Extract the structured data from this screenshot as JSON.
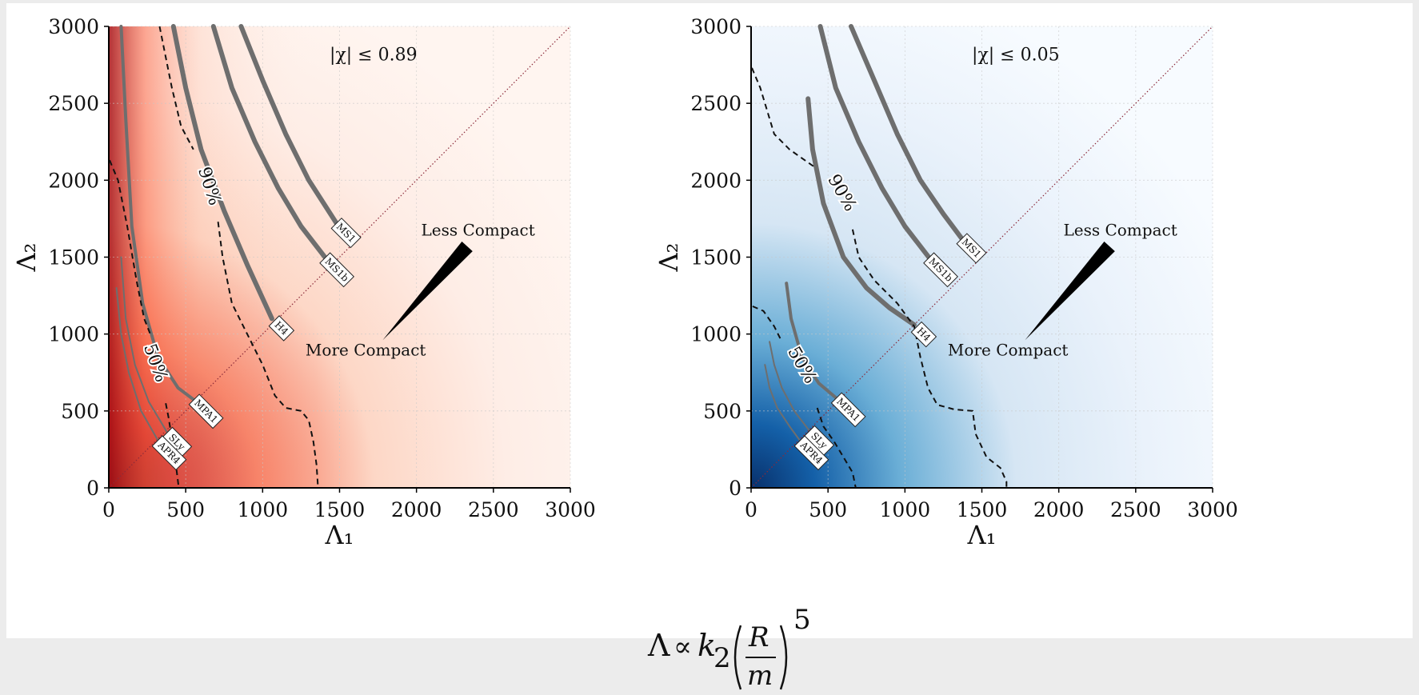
{
  "chart_data": [
    {
      "type": "heatmap",
      "panel": "left",
      "colormap": "reds",
      "colors": {
        "high": "#67000d",
        "mid": "#ef3b2c",
        "low": "#fff5f0"
      },
      "xlabel": "Λ₁",
      "ylabel": "Λ₂",
      "xlim": [
        0,
        3000
      ],
      "ylim": [
        0,
        3000
      ],
      "x_ticks": [
        "0",
        "500",
        "1000",
        "1500",
        "2000",
        "2500",
        "3000"
      ],
      "y_ticks": [
        "0",
        "500",
        "1000",
        "1500",
        "2000",
        "2500",
        "3000"
      ],
      "grid": true,
      "annotation": "|χ| ≤ 0.89",
      "contour_labels": [
        "50%",
        "90%"
      ],
      "contours": [
        {
          "level": "50%",
          "points": [
            [
              5,
              2130
            ],
            [
              60,
              2000
            ],
            [
              120,
              1700
            ],
            [
              180,
              1350
            ],
            [
              230,
              1100
            ],
            [
              270,
              1000
            ]
          ]
        },
        {
          "level": "50%",
          "points": [
            [
              370,
              550
            ],
            [
              390,
              450
            ],
            [
              420,
              250
            ],
            [
              440,
              120
            ],
            [
              455,
              0
            ]
          ]
        },
        {
          "level": "90%",
          "points": [
            [
              330,
              3000
            ],
            [
              370,
              2800
            ],
            [
              410,
              2600
            ],
            [
              470,
              2350
            ],
            [
              550,
              2200
            ]
          ]
        },
        {
          "level": "90%",
          "points": [
            [
              710,
              1730
            ],
            [
              740,
              1500
            ],
            [
              800,
              1200
            ],
            [
              900,
              1000
            ],
            [
              1000,
              800
            ],
            [
              1080,
              600
            ],
            [
              1150,
              520
            ],
            [
              1250,
              500
            ],
            [
              1300,
              440
            ],
            [
              1330,
              300
            ],
            [
              1350,
              150
            ],
            [
              1360,
              0
            ]
          ]
        },
        {
          "level": "90%",
          "points": [
            [
              0,
              0
            ],
            [
              1360,
              0
            ]
          ]
        }
      ],
      "eos": [
        {
          "name": "MS1",
          "points": [
            [
              860,
              3000
            ],
            [
              1000,
              2650
            ],
            [
              1150,
              2300
            ],
            [
              1300,
              2000
            ],
            [
              1480,
              1720
            ]
          ]
        },
        {
          "name": "MS1b",
          "points": [
            [
              680,
              3000
            ],
            [
              800,
              2600
            ],
            [
              950,
              2250
            ],
            [
              1100,
              1950
            ],
            [
              1250,
              1700
            ],
            [
              1420,
              1480
            ]
          ]
        },
        {
          "name": "H4",
          "points": [
            [
              420,
              3000
            ],
            [
              500,
              2600
            ],
            [
              600,
              2200
            ],
            [
              750,
              1800
            ],
            [
              900,
              1450
            ],
            [
              1060,
              1100
            ]
          ]
        },
        {
          "name": "MPA1",
          "points": [
            [
              80,
              3000
            ],
            [
              110,
              2400
            ],
            [
              150,
              1700
            ],
            [
              220,
              1200
            ],
            [
              320,
              850
            ],
            [
              450,
              650
            ],
            [
              570,
              560
            ]
          ]
        },
        {
          "name": "SLy",
          "points": [
            [
              80,
              1500
            ],
            [
              110,
              1100
            ],
            [
              170,
              800
            ],
            [
              260,
              560
            ],
            [
              380,
              360
            ]
          ]
        },
        {
          "name": "APR4",
          "points": [
            [
              50,
              1300
            ],
            [
              80,
              1000
            ],
            [
              130,
              750
            ],
            [
              210,
              500
            ],
            [
              330,
              290
            ]
          ]
        }
      ],
      "arrow": {
        "top_label": "Less Compact",
        "bottom_label": "More Compact"
      }
    },
    {
      "type": "heatmap",
      "panel": "right",
      "colormap": "blues",
      "colors": {
        "high": "#08306b",
        "mid": "#4292c6",
        "low": "#f7fbff"
      },
      "xlabel": "Λ₁",
      "ylabel": "Λ₂",
      "xlim": [
        0,
        3000
      ],
      "ylim": [
        0,
        3000
      ],
      "x_ticks": [
        "0",
        "500",
        "1000",
        "1500",
        "2000",
        "2500",
        "3000"
      ],
      "y_ticks": [
        "0",
        "500",
        "1000",
        "1500",
        "2000",
        "2500",
        "3000"
      ],
      "grid": true,
      "annotation": "|χ| ≤ 0.05",
      "contour_labels": [
        "50%",
        "90%"
      ],
      "contours": [
        {
          "level": "90%",
          "points": [
            [
              5,
              2730
            ],
            [
              60,
              2600
            ],
            [
              150,
              2300
            ],
            [
              250,
              2200
            ],
            [
              420,
              2080
            ]
          ]
        },
        {
          "level": "90%",
          "points": [
            [
              660,
              1680
            ],
            [
              700,
              1500
            ],
            [
              800,
              1350
            ],
            [
              950,
              1200
            ],
            [
              1060,
              1050
            ],
            [
              1100,
              850
            ],
            [
              1150,
              650
            ],
            [
              1210,
              540
            ],
            [
              1320,
              510
            ],
            [
              1440,
              500
            ],
            [
              1460,
              350
            ],
            [
              1530,
              200
            ],
            [
              1620,
              130
            ],
            [
              1660,
              40
            ],
            [
              1660,
              0
            ]
          ]
        },
        {
          "level": "90%",
          "points": [
            [
              0,
              0
            ],
            [
              1660,
              0
            ]
          ]
        },
        {
          "level": "50%",
          "points": [
            [
              10,
              1180
            ],
            [
              80,
              1150
            ],
            [
              150,
              1050
            ],
            [
              200,
              950
            ]
          ]
        },
        {
          "level": "50%",
          "points": [
            [
              430,
              520
            ],
            [
              470,
              400
            ],
            [
              540,
              300
            ],
            [
              600,
              200
            ],
            [
              660,
              100
            ],
            [
              680,
              0
            ]
          ]
        },
        {
          "level": "50%",
          "points": [
            [
              0,
              0
            ],
            [
              680,
              0
            ]
          ]
        }
      ],
      "eos": [
        {
          "name": "MS1",
          "points": [
            [
              650,
              3000
            ],
            [
              800,
              2650
            ],
            [
              950,
              2300
            ],
            [
              1100,
              2000
            ],
            [
              1250,
              1780
            ],
            [
              1370,
              1620
            ]
          ]
        },
        {
          "name": "MS1b",
          "points": [
            [
              450,
              3000
            ],
            [
              550,
              2600
            ],
            [
              700,
              2250
            ],
            [
              850,
              1950
            ],
            [
              1000,
              1700
            ],
            [
              1170,
              1480
            ]
          ]
        },
        {
          "name": "H4",
          "points": [
            [
              370,
              2530
            ],
            [
              400,
              2200
            ],
            [
              470,
              1850
            ],
            [
              600,
              1500
            ],
            [
              750,
              1300
            ],
            [
              900,
              1170
            ],
            [
              1060,
              1060
            ]
          ]
        },
        {
          "name": "MPA1",
          "points": [
            [
              230,
              1330
            ],
            [
              260,
              1100
            ],
            [
              330,
              850
            ],
            [
              440,
              680
            ],
            [
              570,
              570
            ]
          ]
        },
        {
          "name": "SLy",
          "points": [
            [
              120,
              950
            ],
            [
              150,
              800
            ],
            [
              200,
              650
            ],
            [
              280,
              500
            ],
            [
              380,
              370
            ]
          ]
        },
        {
          "name": "APR4",
          "points": [
            [
              90,
              800
            ],
            [
              120,
              650
            ],
            [
              170,
              520
            ],
            [
              250,
              400
            ],
            [
              330,
              290
            ]
          ]
        }
      ],
      "arrow": {
        "top_label": "Less Compact",
        "bottom_label": "More Compact"
      }
    }
  ],
  "formula": {
    "lambda": "Λ",
    "prop": "∝",
    "k": "k",
    "sub": "2",
    "num": "R",
    "den": "m",
    "exp": "5"
  }
}
